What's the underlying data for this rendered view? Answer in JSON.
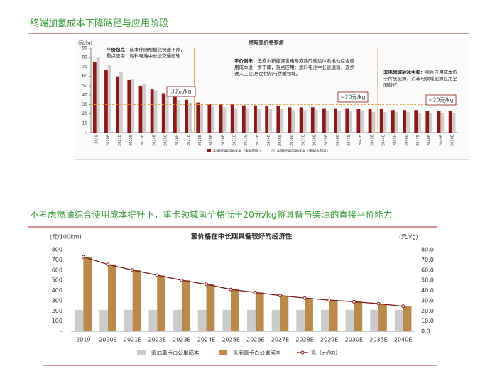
{
  "header": {
    "title_1": "终端加氢成本下降路径与应用阶段",
    "title_2": "不考虑燃油综合使用成本提升下，重卡领域氢价格低于20元/kg将具备与柴油的直接平价能力"
  },
  "chart_data": [
    {
      "type": "bar",
      "title": "终端氢价格预测",
      "y_label": "(元/kg)",
      "categories": [
        "2019",
        "2020E",
        "2021E",
        "2022E",
        "2023E",
        "2024E",
        "2025E",
        "2026E",
        "2027E",
        "2028E",
        "2029E",
        "2030E",
        "2031E",
        "2032E",
        "2033E",
        "2034E",
        "2035E",
        "2036E",
        "2037E",
        "2038E",
        "2039E",
        "2040E",
        "2041E",
        "2042E",
        "2043E",
        "2044E",
        "2045E",
        "2046E",
        "2047E",
        "2048E",
        "2049E",
        "2050E"
      ],
      "series": [
        {
          "name": "中国终端用氢成本（重整制氢）",
          "color": "#8b1a1a",
          "values": [
            75,
            67,
            60,
            56,
            50,
            46,
            42,
            38,
            35,
            32,
            31,
            30,
            30,
            29,
            29,
            28,
            28,
            27,
            27,
            27,
            26,
            26,
            26,
            25,
            25,
            25,
            24,
            24,
            24,
            23,
            23,
            23
          ]
        },
        {
          "name": "中国终端用氢成本（电解水制氢）",
          "color": "#d2cccc",
          "values": [
            80,
            72,
            65,
            57,
            52,
            45,
            40,
            35,
            32,
            30,
            28,
            27,
            26,
            26,
            25,
            25,
            25,
            24,
            24,
            24,
            23,
            23,
            23,
            23,
            22,
            22,
            22,
            22,
            21,
            21,
            21,
            21
          ]
        }
      ],
      "ylim": [
        0,
        90
      ],
      "yticks": [
        0,
        10,
        20,
        30,
        40,
        50,
        60,
        70,
        80,
        90
      ],
      "reference_line": 30,
      "annotations": [
        {
          "title": "平价起点：",
          "text": "成本伴随规模化快速下降，重点应用：燃料电池中长途交通运输"
        },
        {
          "title": "平价到来：",
          "text": "低成本新能源发电与成熟的储运体系推动综合应用成本进一步下降，重点应用：燃料电池中长途运输，逐步进入工业/居民供热与供暖领域。"
        },
        {
          "title": "非电领域破冰中和：",
          "text": "综合应用成本低于传统能源，对非电领域能源应用全面替代"
        }
      ],
      "callouts": [
        "30元/kg",
        "~20元/kg",
        "<20元/kg"
      ]
    },
    {
      "type": "bar_line",
      "title": "氢价格在中长期具备较好的经济性",
      "y_label": "(元/100km)",
      "y2_label": "(元/kg)",
      "categories": [
        "2019",
        "2020E",
        "2021E",
        "2022E",
        "2023E",
        "2024E",
        "2025E",
        "2026E",
        "2027E",
        "2028E",
        "2029E",
        "2030E",
        "2035E",
        "2040E"
      ],
      "series": [
        {
          "name": "柴油重卡百公里成本",
          "type": "bar",
          "color": "#cccccc",
          "values": [
            210,
            210,
            210,
            210,
            210,
            210,
            210,
            210,
            210,
            210,
            210,
            210,
            210,
            210
          ]
        },
        {
          "name": "氢能重卡百公里成本",
          "type": "bar",
          "color": "#b98a4b",
          "values": [
            730,
            655,
            600,
            545,
            500,
            460,
            410,
            380,
            350,
            325,
            305,
            290,
            270,
            250
          ]
        },
        {
          "name": "氢（元/kg）",
          "type": "line",
          "axis": "y2",
          "color": "#7b1a1a",
          "values": [
            73,
            65.5,
            60,
            55,
            50,
            46,
            41,
            38,
            35,
            32.5,
            30.5,
            29,
            27,
            24.5
          ]
        }
      ],
      "ylim": [
        0,
        800
      ],
      "yticks": [
        {
          "value": 0,
          "label": "-"
        },
        100,
        200,
        300,
        400,
        500,
        600,
        700,
        800
      ],
      "y2lim": [
        0,
        80
      ],
      "y2ticks": [
        {
          "value": 0,
          "label": "0.0"
        },
        {
          "value": 10,
          "label": "10.0"
        },
        {
          "value": 20,
          "label": "20.0"
        },
        {
          "value": 30,
          "label": "30.0"
        },
        {
          "value": 40,
          "label": "40.0"
        },
        {
          "value": 50,
          "label": "50.0"
        },
        {
          "value": 60,
          "label": "60.0"
        },
        {
          "value": 70,
          "label": "70.0"
        },
        {
          "value": 80,
          "label": "80.0"
        }
      ]
    }
  ]
}
